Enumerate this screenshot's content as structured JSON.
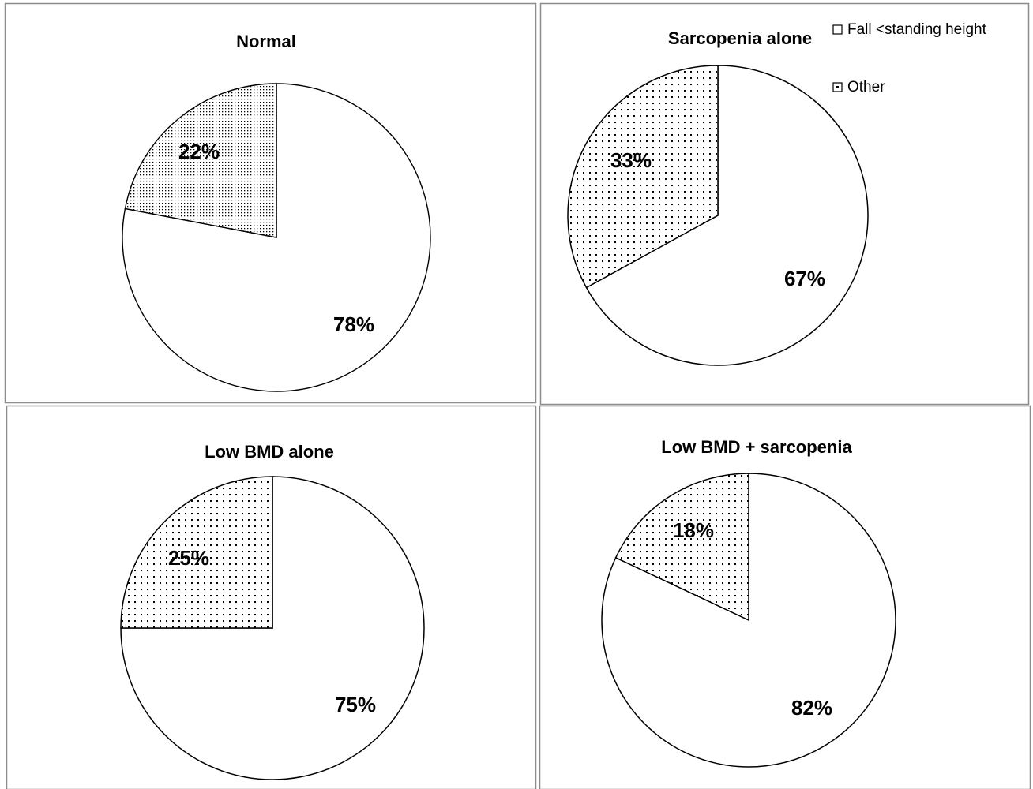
{
  "chart_data": [
    {
      "type": "pie",
      "title": "Normal",
      "categories": [
        "Fall <standing height",
        "Other"
      ],
      "values": [
        78,
        22
      ],
      "labels": [
        "78%",
        "22%"
      ]
    },
    {
      "type": "pie",
      "title": "Sarcopenia alone",
      "categories": [
        "Fall <standing height",
        "Other"
      ],
      "values": [
        67,
        33
      ],
      "labels": [
        "67%",
        "33%"
      ],
      "legend": {
        "placement": "top-right",
        "entries": [
          "Fall <standing height",
          "Other"
        ]
      }
    },
    {
      "type": "pie",
      "title": "Low BMD alone",
      "categories": [
        "Fall <standing height",
        "Other"
      ],
      "values": [
        75,
        25
      ],
      "labels": [
        "75%",
        "25%"
      ]
    },
    {
      "type": "pie",
      "title": "Low BMD + sarcopenia",
      "categories": [
        "Fall <standing height",
        "Other"
      ],
      "values": [
        82,
        18
      ],
      "labels": [
        "82%",
        "18%"
      ]
    }
  ],
  "colors": {
    "slice_fall": "#ffffff",
    "slice_other": "#ffffff",
    "pattern_dot": "#000000",
    "panel_border": "#8c8c8c",
    "text": "#000000"
  }
}
